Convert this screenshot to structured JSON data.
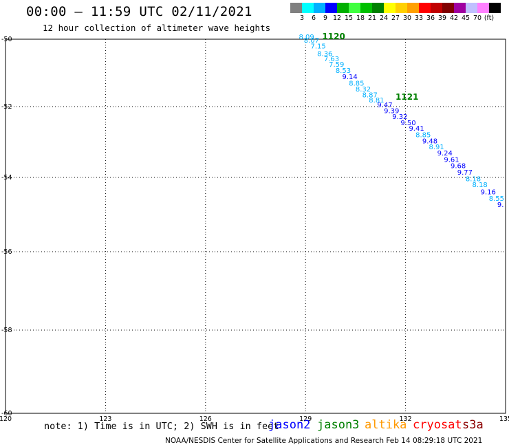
{
  "header": {
    "title": "00:00 – 11:59 UTC 02/11/2021",
    "subtitle": "12 hour collection of altimeter wave heights"
  },
  "legend": {
    "unit": "(ft)",
    "colors": [
      "#808080",
      "#00ffff",
      "#00b0ff",
      "#0000ff",
      "#00b000",
      "#40ff40",
      "#00c000",
      "#008000",
      "#ffff00",
      "#ffd000",
      "#ffa000",
      "#ff0000",
      "#c00000",
      "#800000",
      "#a000a0",
      "#c0c0ff",
      "#ff80ff",
      "#000000"
    ],
    "labels": [
      "3",
      "6",
      "9",
      "12",
      "15",
      "18",
      "21",
      "24",
      "27",
      "30",
      "33",
      "36",
      "39",
      "42",
      "45",
      "70"
    ]
  },
  "map": {
    "lon_ticks": [
      "120",
      "123",
      "126",
      "129",
      "132",
      "135"
    ],
    "lat_ticks": [
      "-50",
      "-52",
      "-54",
      "-56",
      "-58",
      "-60"
    ]
  },
  "track": {
    "times": [
      {
        "label": "1120",
        "lon": 129.5,
        "lat": -49.97,
        "color": "#008000"
      },
      {
        "label": "1121",
        "lon": 131.7,
        "lat": -51.8,
        "color": "#008000"
      }
    ],
    "points": [
      {
        "label": "8.09",
        "lon": 128.8,
        "lat": -49.95,
        "color": "#00b0ff"
      },
      {
        "label": "8.07",
        "lon": 128.95,
        "lat": -50.1,
        "color": "#00b0ff"
      },
      {
        "label": "7.15",
        "lon": 129.15,
        "lat": -50.28,
        "color": "#00b0ff"
      },
      {
        "label": "8.36",
        "lon": 129.35,
        "lat": -50.5,
        "color": "#00b0ff"
      },
      {
        "label": "7.63",
        "lon": 129.55,
        "lat": -50.65,
        "color": "#00b0ff"
      },
      {
        "label": "7.59",
        "lon": 129.7,
        "lat": -50.82,
        "color": "#00b0ff"
      },
      {
        "label": "8.53",
        "lon": 129.9,
        "lat": -51.0,
        "color": "#00b0ff"
      },
      {
        "label": "9.14",
        "lon": 130.1,
        "lat": -51.18,
        "color": "#0000ff"
      },
      {
        "label": "8.85",
        "lon": 130.3,
        "lat": -51.38,
        "color": "#00b0ff"
      },
      {
        "label": "8.32",
        "lon": 130.5,
        "lat": -51.55,
        "color": "#00b0ff"
      },
      {
        "label": "8.87",
        "lon": 130.7,
        "lat": -51.72,
        "color": "#00b0ff"
      },
      {
        "label": "8.81",
        "lon": 130.9,
        "lat": -51.88,
        "color": "#00b0ff"
      },
      {
        "label": "9.47",
        "lon": 131.15,
        "lat": -52.02,
        "color": "#0000ff"
      },
      {
        "label": "9.39",
        "lon": 131.35,
        "lat": -52.18,
        "color": "#0000ff"
      },
      {
        "label": "9.32",
        "lon": 131.6,
        "lat": -52.35,
        "color": "#0000ff"
      },
      {
        "label": "9.50",
        "lon": 131.85,
        "lat": -52.52,
        "color": "#0000ff"
      },
      {
        "label": "9.41",
        "lon": 132.1,
        "lat": -52.68,
        "color": "#0000ff"
      },
      {
        "label": "8.85",
        "lon": 132.3,
        "lat": -52.86,
        "color": "#00b0ff"
      },
      {
        "label": "9.48",
        "lon": 132.5,
        "lat": -53.04,
        "color": "#0000ff"
      },
      {
        "label": "8.91",
        "lon": 132.7,
        "lat": -53.2,
        "color": "#00b0ff"
      },
      {
        "label": "9.24",
        "lon": 132.95,
        "lat": -53.38,
        "color": "#0000ff"
      },
      {
        "label": "9.61",
        "lon": 133.15,
        "lat": -53.56,
        "color": "#0000ff"
      },
      {
        "label": "9.68",
        "lon": 133.35,
        "lat": -53.74,
        "color": "#0000ff"
      },
      {
        "label": "9.77",
        "lon": 133.55,
        "lat": -53.92,
        "color": "#0000ff"
      },
      {
        "label": "8.18",
        "lon": 133.8,
        "lat": -54.1,
        "color": "#00b0ff"
      },
      {
        "label": "8.18",
        "lon": 134.0,
        "lat": -54.26,
        "color": "#00b0ff"
      },
      {
        "label": "9.16",
        "lon": 134.25,
        "lat": -54.45,
        "color": "#0000ff"
      },
      {
        "label": "8.55",
        "lon": 134.5,
        "lat": -54.63,
        "color": "#00b0ff"
      },
      {
        "label": "9.",
        "lon": 134.75,
        "lat": -54.8,
        "color": "#0000ff"
      }
    ]
  },
  "footer": {
    "note": "note: 1) Time is in UTC; 2) SWH is in feet",
    "sat_jason2": "jason2",
    "sat_jason3": "jason3",
    "sat_altika": "altika",
    "sat_cryosat": "cryosat",
    "sat_s3a": "s3a",
    "credit": "NOAA/NESDIS Center for Satellite Applications and Research    Feb 14 08:29:18 UTC 2021"
  }
}
